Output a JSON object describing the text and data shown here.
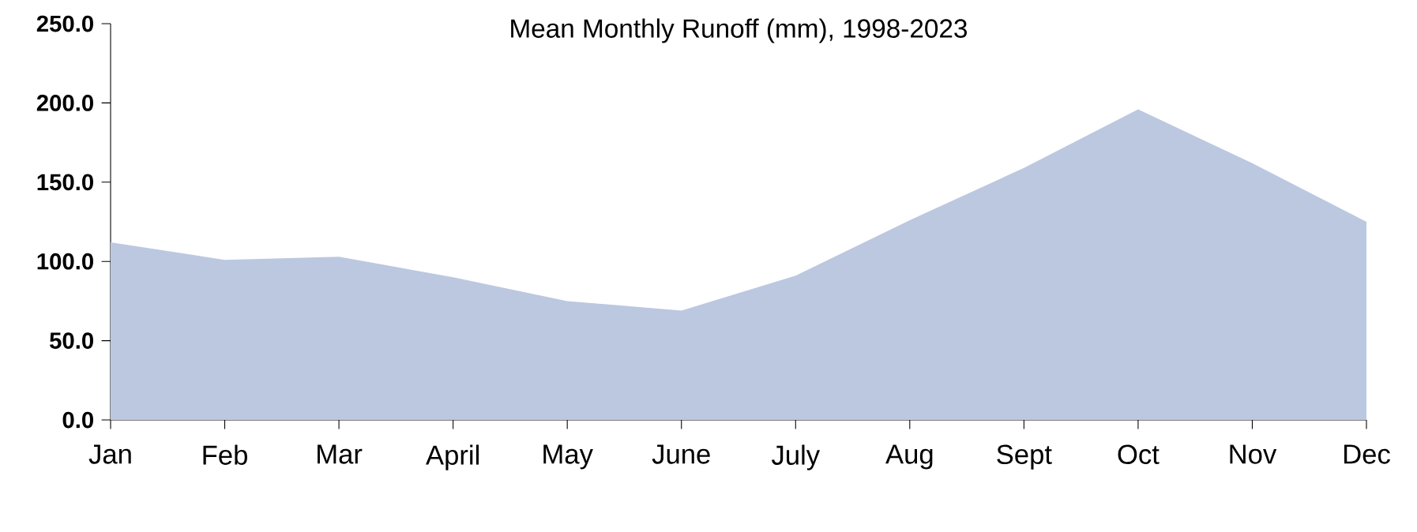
{
  "chart_data": {
    "type": "area",
    "title": "Mean Monthly Runoff (mm), 1998-2023",
    "categories": [
      "Jan",
      "Feb",
      "Mar",
      "April",
      "May",
      "June",
      "July",
      "Aug",
      "Sept",
      "Oct",
      "Nov",
      "Dec"
    ],
    "values": [
      112,
      101,
      103,
      90,
      75,
      69,
      91,
      126,
      159,
      196,
      162,
      125
    ],
    "color": "#bcc8e0",
    "ylim": [
      0,
      250
    ],
    "yticks": [
      {
        "value": 0,
        "label": "0.0"
      },
      {
        "value": 50,
        "label": "50.0"
      },
      {
        "value": 100,
        "label": "100.0"
      },
      {
        "value": 150,
        "label": "150.0"
      },
      {
        "value": 200,
        "label": "200.0"
      },
      {
        "value": 250,
        "label": "250.0"
      }
    ],
    "grid": false
  }
}
